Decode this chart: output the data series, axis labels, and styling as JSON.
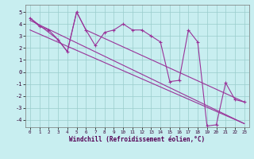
{
  "xlabel": "Windchill (Refroidissement éolien,°C)",
  "bg_color": "#c8eef0",
  "grid_color": "#99cccc",
  "line_color": "#993399",
  "xlim": [
    -0.5,
    23.5
  ],
  "ylim": [
    -4.6,
    5.6
  ],
  "xticks": [
    0,
    1,
    2,
    3,
    4,
    5,
    6,
    7,
    8,
    9,
    10,
    11,
    12,
    13,
    14,
    15,
    16,
    17,
    18,
    19,
    20,
    21,
    22,
    23
  ],
  "yticks": [
    -4,
    -3,
    -2,
    -1,
    0,
    1,
    2,
    3,
    4,
    5
  ],
  "series_main_x": [
    0,
    1,
    2,
    3,
    4,
    5,
    6,
    7,
    8,
    9,
    10,
    11,
    12,
    13,
    14,
    15,
    16,
    17,
    18,
    19,
    20,
    21,
    22,
    23
  ],
  "series_main_y": [
    4.5,
    3.8,
    3.5,
    2.7,
    1.7,
    5.0,
    3.5,
    2.2,
    3.3,
    3.5,
    4.0,
    3.5,
    3.5,
    3.0,
    2.5,
    -0.8,
    -0.7,
    3.5,
    2.5,
    -4.5,
    -4.4,
    -0.9,
    -2.3,
    -2.5
  ],
  "trend1_x": [
    0,
    23
  ],
  "trend1_y": [
    4.3,
    -4.3
  ],
  "trend2_x": [
    0,
    23
  ],
  "trend2_y": [
    3.5,
    -4.3
  ],
  "connect_x": [
    0,
    3,
    4,
    5,
    6,
    23
  ],
  "connect_y": [
    4.5,
    2.7,
    1.7,
    5.0,
    3.5,
    -2.5
  ]
}
